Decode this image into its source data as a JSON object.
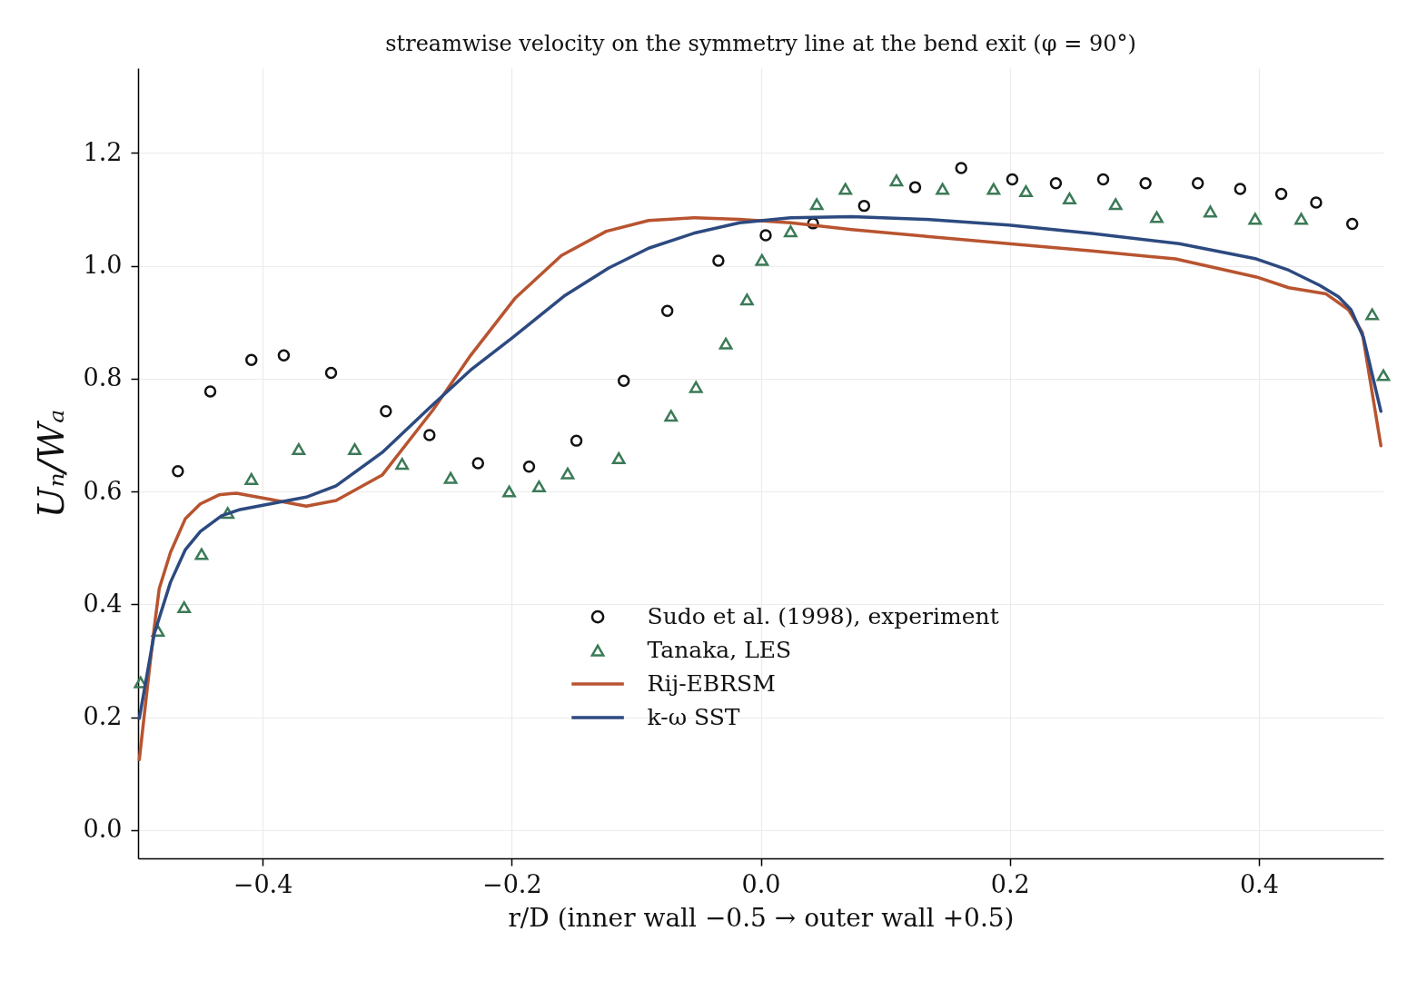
{
  "chart_data": {
    "type": "line",
    "title": "streamwise velocity on the symmetry line at the bend exit (φ = 90°)",
    "xlabel": "r/D   (inner wall −0.5 → outer wall +0.5)",
    "ylabel": "Uₙ/Wₐ",
    "xlim": [
      -0.5,
      0.5
    ],
    "xticks": [
      {
        "value": -0.4,
        "label": "−0.4"
      },
      {
        "value": -0.2,
        "label": "−0.2"
      },
      {
        "value": 0,
        "label": "0.0"
      },
      0.2,
      0.4
    ],
    "ylim": [
      -0.05,
      1.35
    ],
    "yticks": [
      {
        "value": 0,
        "label": "0.0"
      },
      0.2,
      0.4,
      0.6,
      0.8,
      {
        "value": 1,
        "label": "1.0"
      },
      1.2
    ],
    "grid": true,
    "legend": "bottom",
    "series": [
      {
        "name": "Sudo et al. (1998), experiment",
        "type": "scatter",
        "marker": "circle",
        "color": "#111111",
        "x": [
          -0.468,
          -0.442,
          -0.409,
          -0.383,
          -0.345,
          -0.301,
          -0.266,
          -0.227,
          -0.186,
          -0.148,
          -0.11,
          -0.075,
          -0.034,
          0.004,
          0.042,
          0.083,
          0.124,
          0.161,
          0.202,
          0.237,
          0.275,
          0.309,
          0.351,
          0.385,
          0.418,
          0.446,
          0.475
        ],
        "values": [
          0.636,
          0.777,
          0.833,
          0.841,
          0.81,
          0.742,
          0.7,
          0.65,
          0.644,
          0.69,
          0.796,
          0.92,
          1.009,
          1.054,
          1.075,
          1.106,
          1.139,
          1.173,
          1.153,
          1.146,
          1.153,
          1.146,
          1.146,
          1.136,
          1.127,
          1.112,
          1.074
        ]
      },
      {
        "name": "Tanaka, LES",
        "type": "scatter",
        "marker": "triangle",
        "color": "#3b7a57",
        "x": [
          -0.498,
          -0.484,
          -0.463,
          -0.449,
          -0.428,
          -0.409,
          -0.371,
          -0.326,
          -0.288,
          -0.249,
          -0.202,
          -0.178,
          -0.155,
          -0.114,
          -0.072,
          -0.052,
          -0.028,
          -0.011,
          0.001,
          0.024,
          0.045,
          0.068,
          0.109,
          0.146,
          0.187,
          0.213,
          0.248,
          0.285,
          0.318,
          0.361,
          0.397,
          0.434,
          0.491,
          0.5
        ],
        "values": [
          0.262,
          0.353,
          0.395,
          0.489,
          0.562,
          0.622,
          0.675,
          0.675,
          0.649,
          0.624,
          0.6,
          0.609,
          0.632,
          0.659,
          0.734,
          0.785,
          0.862,
          0.94,
          1.01,
          1.061,
          1.109,
          1.136,
          1.151,
          1.136,
          1.136,
          1.132,
          1.119,
          1.109,
          1.086,
          1.096,
          1.083,
          1.083,
          0.914,
          0.806
        ]
      },
      {
        "name": "Rij-EBRSM",
        "type": "line",
        "line_style": "solid",
        "color": "#b85430",
        "x": [
          -0.499,
          -0.491,
          -0.487,
          -0.483,
          -0.474,
          -0.462,
          -0.45,
          -0.435,
          -0.421,
          -0.394,
          -0.365,
          -0.341,
          -0.304,
          -0.263,
          -0.233,
          -0.197,
          -0.16,
          -0.124,
          -0.09,
          -0.053,
          -0.017,
          0.024,
          0.073,
          0.133,
          0.199,
          0.266,
          0.333,
          0.398,
          0.424,
          0.454,
          0.472,
          0.483,
          0.498
        ],
        "values": [
          0.125,
          0.283,
          0.359,
          0.428,
          0.492,
          0.552,
          0.578,
          0.594,
          0.597,
          0.586,
          0.574,
          0.584,
          0.629,
          0.745,
          0.841,
          0.943,
          1.018,
          1.061,
          1.08,
          1.085,
          1.082,
          1.076,
          1.064,
          1.052,
          1.039,
          1.026,
          1.012,
          0.98,
          0.961,
          0.95,
          0.922,
          0.882,
          0.681
        ]
      },
      {
        "name": "k-ω SST",
        "type": "line",
        "line_style": "solid",
        "color": "#2d4a80",
        "x": [
          -0.499,
          -0.487,
          -0.474,
          -0.462,
          -0.45,
          -0.433,
          -0.418,
          -0.394,
          -0.365,
          -0.341,
          -0.304,
          -0.266,
          -0.233,
          -0.199,
          -0.158,
          -0.122,
          -0.09,
          -0.053,
          -0.017,
          0.024,
          0.073,
          0.133,
          0.199,
          0.266,
          0.336,
          0.398,
          0.424,
          0.449,
          0.464,
          0.474,
          0.484,
          0.498
        ],
        "values": [
          0.198,
          0.348,
          0.439,
          0.497,
          0.529,
          0.557,
          0.568,
          0.578,
          0.59,
          0.61,
          0.669,
          0.748,
          0.815,
          0.873,
          0.946,
          0.996,
          1.031,
          1.058,
          1.076,
          1.085,
          1.087,
          1.082,
          1.072,
          1.057,
          1.039,
          1.012,
          0.992,
          0.965,
          0.945,
          0.922,
          0.873,
          0.742
        ]
      }
    ]
  }
}
